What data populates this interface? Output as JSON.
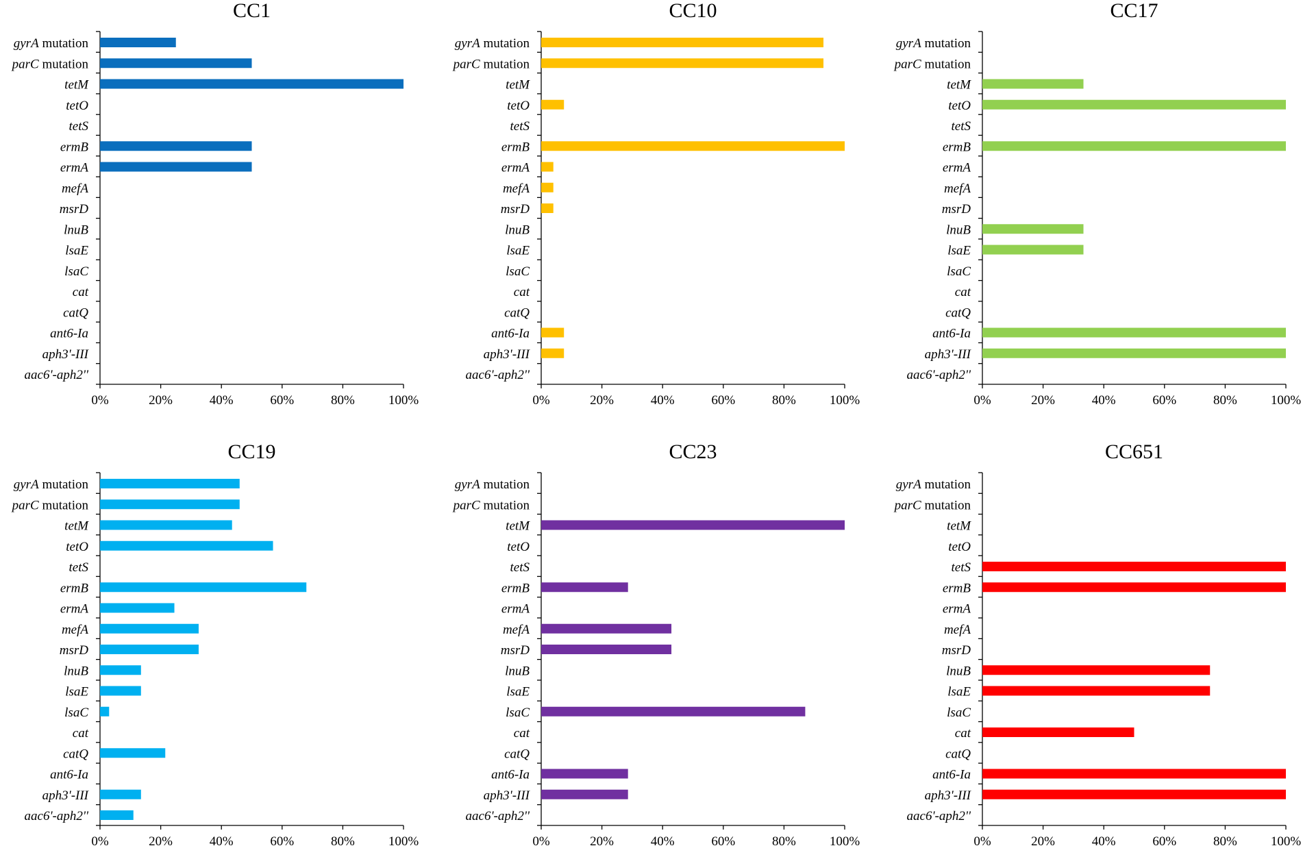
{
  "chart_data": {
    "type": "bar",
    "orientation": "horizontal",
    "categories": [
      {
        "gene": "gyrA",
        "suffix": " mutation"
      },
      {
        "gene": "parC",
        "suffix": " mutation"
      },
      {
        "gene": "tetM",
        "suffix": ""
      },
      {
        "gene": "tetO",
        "suffix": ""
      },
      {
        "gene": "tetS",
        "suffix": ""
      },
      {
        "gene": "ermB",
        "suffix": ""
      },
      {
        "gene": "ermA",
        "suffix": ""
      },
      {
        "gene": "mefA",
        "suffix": ""
      },
      {
        "gene": "msrD",
        "suffix": ""
      },
      {
        "gene": "lnuB",
        "suffix": ""
      },
      {
        "gene": "lsaE",
        "suffix": ""
      },
      {
        "gene": "lsaC",
        "suffix": ""
      },
      {
        "gene": "cat",
        "suffix": ""
      },
      {
        "gene": "catQ",
        "suffix": ""
      },
      {
        "gene": "ant6-Ia",
        "suffix": ""
      },
      {
        "gene": "aph3'-III",
        "suffix": ""
      },
      {
        "gene": "aac6'-aph2''",
        "suffix": ""
      }
    ],
    "x_ticks": [
      "0%",
      "20%",
      "40%",
      "60%",
      "80%",
      "100%"
    ],
    "xlim": [
      0,
      100
    ],
    "unit": "%",
    "panels": [
      {
        "title": "CC1",
        "color": "#0A6EBD",
        "values": [
          25,
          50,
          100,
          0,
          0,
          50,
          50,
          0,
          0,
          0,
          0,
          0,
          0,
          0,
          0,
          0,
          0
        ]
      },
      {
        "title": "CC10",
        "color": "#FFC000",
        "values": [
          93,
          93,
          0,
          7.5,
          0,
          100,
          4,
          4,
          4,
          0,
          0,
          0,
          0,
          0,
          7.5,
          7.5,
          0
        ]
      },
      {
        "title": "CC17",
        "color": "#92D050",
        "values": [
          0,
          0,
          33.3,
          100,
          0,
          100,
          0,
          0,
          0,
          33.3,
          33.3,
          0,
          0,
          0,
          100,
          100,
          0
        ]
      },
      {
        "title": "CC19",
        "color": "#00B0F0",
        "values": [
          46,
          46,
          43.5,
          57,
          0,
          68,
          24.5,
          32.5,
          32.5,
          13.5,
          13.5,
          3,
          0,
          21.5,
          0,
          13.5,
          11
        ]
      },
      {
        "title": "CC23",
        "color": "#7030A0",
        "values": [
          0,
          0,
          100,
          0,
          0,
          28.6,
          0,
          42.9,
          42.9,
          0,
          0,
          87,
          0,
          0,
          28.6,
          28.6,
          0
        ]
      },
      {
        "title": "CC651",
        "color": "#FF0000",
        "values": [
          0,
          0,
          0,
          0,
          100,
          100,
          0,
          0,
          0,
          75,
          75,
          0,
          50,
          0,
          100,
          100,
          0
        ]
      }
    ]
  }
}
